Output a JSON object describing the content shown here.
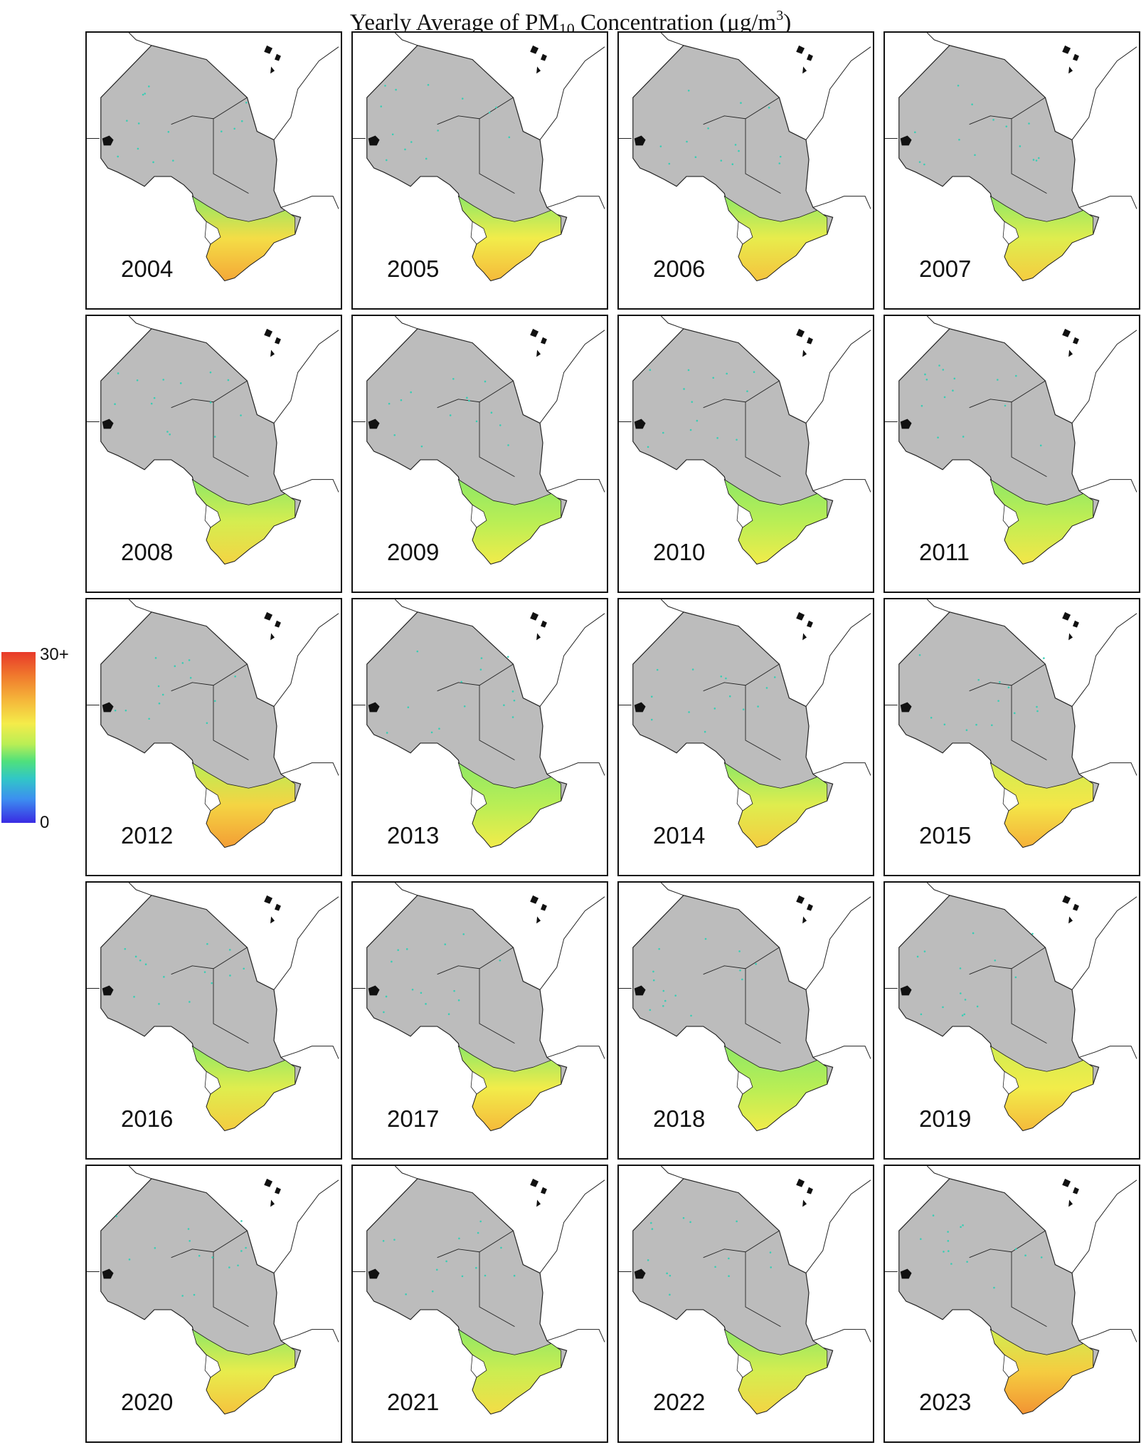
{
  "figure": {
    "title_prefix": "Yearly Average of PM",
    "title_sub": "10",
    "title_mid": " Concentration (μg/m",
    "title_sup": "3",
    "title_suffix": ")"
  },
  "legend": {
    "max_label": "30+",
    "min_label": "0",
    "colors": [
      "#3a2be3",
      "#3c8ff0",
      "#31c7c6",
      "#4fe07c",
      "#b9ee55",
      "#f4ec4a",
      "#f5b63a",
      "#f07a2d",
      "#e8392a"
    ]
  },
  "map_style": {
    "land_color": "#bcbcbc",
    "border_color": "#222222",
    "water_bg": "#ffffff"
  },
  "panels": [
    {
      "year": "2004",
      "south_level": 0.78,
      "east_level": 0.45
    },
    {
      "year": "2005",
      "south_level": 0.74,
      "east_level": 0.45
    },
    {
      "year": "2006",
      "south_level": 0.72,
      "east_level": 0.45
    },
    {
      "year": "2007",
      "south_level": 0.7,
      "east_level": 0.45
    },
    {
      "year": "2008",
      "south_level": 0.68,
      "east_level": 0.45
    },
    {
      "year": "2009",
      "south_level": 0.62,
      "east_level": 0.45
    },
    {
      "year": "2010",
      "south_level": 0.62,
      "east_level": 0.45
    },
    {
      "year": "2011",
      "south_level": 0.64,
      "east_level": 0.45
    },
    {
      "year": "2012",
      "south_level": 0.8,
      "east_level": 0.5
    },
    {
      "year": "2013",
      "south_level": 0.62,
      "east_level": 0.45
    },
    {
      "year": "2014",
      "south_level": 0.7,
      "east_level": 0.45
    },
    {
      "year": "2015",
      "south_level": 0.76,
      "east_level": 0.55
    },
    {
      "year": "2016",
      "south_level": 0.7,
      "east_level": 0.45
    },
    {
      "year": "2017",
      "south_level": 0.74,
      "east_level": 0.45
    },
    {
      "year": "2018",
      "south_level": 0.62,
      "east_level": 0.45
    },
    {
      "year": "2019",
      "south_level": 0.74,
      "east_level": 0.55
    },
    {
      "year": "2020",
      "south_level": 0.72,
      "east_level": 0.45
    },
    {
      "year": "2021",
      "south_level": 0.66,
      "east_level": 0.45
    },
    {
      "year": "2022",
      "south_level": 0.68,
      "east_level": 0.45
    },
    {
      "year": "2023",
      "south_level": 0.82,
      "east_level": 0.55
    }
  ]
}
